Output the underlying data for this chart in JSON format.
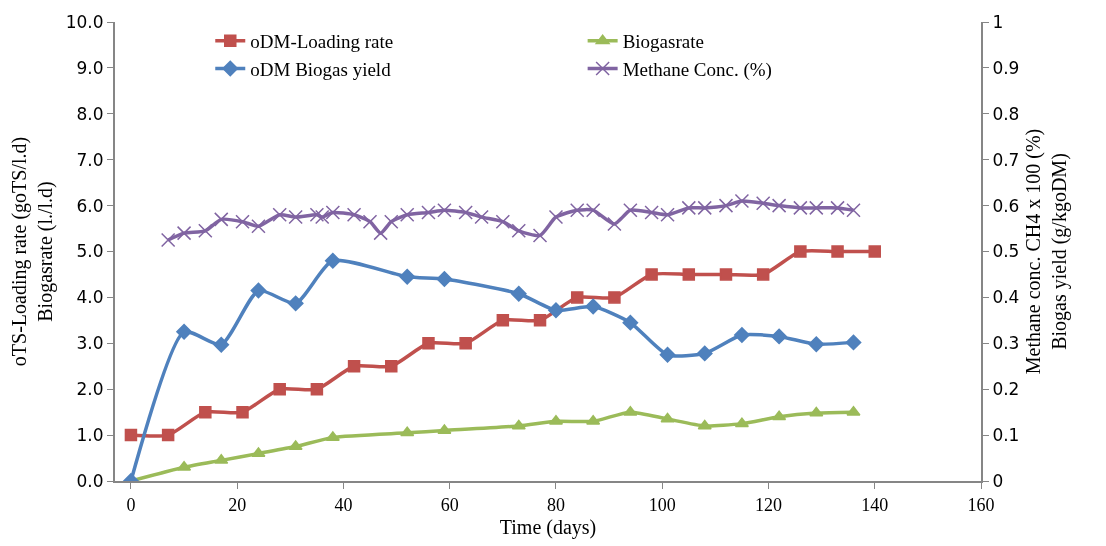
{
  "chart_data": {
    "type": "line",
    "xlabel": "Time (days)",
    "ylabel": "oTS-Loading rate (goTS/l.d)\nBiogasrate (l./l.d)",
    "y2label": "Methane conc. CH4 x 100 (%)\nBiogas yield (g/kgoDM)",
    "xlim": [
      -3,
      160
    ],
    "xticks": [
      0,
      20,
      40,
      60,
      80,
      100,
      120,
      140,
      160
    ],
    "ylim": [
      0,
      10
    ],
    "yticks": [
      {
        "value": 0,
        "label": "0.0"
      },
      {
        "value": 1,
        "label": "1.0"
      },
      {
        "value": 2,
        "label": "2.0"
      },
      {
        "value": 3,
        "label": "3.0"
      },
      {
        "value": 4,
        "label": "4.0"
      },
      {
        "value": 5,
        "label": "5.0"
      },
      {
        "value": 6,
        "label": "6.0"
      },
      {
        "value": 7,
        "label": "7.0"
      },
      {
        "value": 8,
        "label": "8.0"
      },
      {
        "value": 9,
        "label": "9.0"
      },
      {
        "value": 10,
        "label": "10.0"
      }
    ],
    "y2lim": [
      0,
      1
    ],
    "y2ticks": [
      0,
      0.1,
      0.2,
      0.3,
      0.4,
      0.5,
      0.6,
      0.7,
      0.8,
      0.9,
      1
    ],
    "legend": "top",
    "series": [
      {
        "name": "oDM-Loading rate",
        "color": "#c0504d",
        "marker": "square",
        "x": [
          0,
          7,
          14,
          21,
          28,
          35,
          42,
          49,
          56,
          63,
          70,
          77,
          84,
          91,
          98,
          105,
          112,
          119,
          126,
          133,
          140
        ],
        "values": [
          1,
          1,
          1.5,
          1.5,
          2,
          2,
          2.5,
          2.5,
          3,
          3,
          3.5,
          3.5,
          4,
          4,
          4.5,
          4.5,
          4.5,
          4.5,
          5,
          5,
          5
        ]
      },
      {
        "name": "Biogasrate",
        "color": "#9bbb59",
        "marker": "triangle",
        "x": [
          0,
          10,
          17,
          24,
          31,
          38,
          52,
          59,
          73,
          80,
          87,
          94,
          101,
          108,
          115,
          122,
          129,
          136
        ],
        "values": [
          0,
          0.3,
          0.45,
          0.6,
          0.75,
          0.95,
          1.05,
          1.1,
          1.2,
          1.3,
          1.3,
          1.5,
          1.35,
          1.2,
          1.25,
          1.4,
          1.48,
          1.5
        ]
      },
      {
        "name": "oDM Biogas yield",
        "color": "#4f81bd",
        "marker": "diamond",
        "axis": "y2",
        "x": [
          0,
          10,
          17,
          24,
          31,
          38,
          52,
          59,
          73,
          80,
          87,
          94,
          101,
          108,
          115,
          122,
          129,
          136
        ],
        "values": [
          0,
          0.325,
          0.297,
          0.415,
          0.387,
          0.48,
          0.445,
          0.44,
          0.408,
          0.372,
          0.38,
          0.345,
          0.275,
          0.278,
          0.318,
          0.315,
          0.298,
          0.302
        ]
      },
      {
        "name": "Methane Conc. (%)",
        "color": "#8064a2",
        "marker": "cross",
        "axis": "y2",
        "x": [
          7,
          10,
          14,
          17,
          21,
          24,
          28,
          31,
          35,
          36,
          38,
          42,
          45,
          47,
          49,
          52,
          56,
          59,
          63,
          66,
          70,
          73,
          77,
          80,
          84,
          87,
          91,
          94,
          98,
          101,
          105,
          108,
          112,
          115,
          119,
          122,
          126,
          129,
          133,
          136
        ],
        "values": [
          0.525,
          0.54,
          0.545,
          0.57,
          0.565,
          0.555,
          0.58,
          0.575,
          0.58,
          0.575,
          0.585,
          0.58,
          0.565,
          0.54,
          0.565,
          0.58,
          0.585,
          0.59,
          0.585,
          0.575,
          0.565,
          0.545,
          0.535,
          0.575,
          0.59,
          0.59,
          0.56,
          0.59,
          0.585,
          0.58,
          0.595,
          0.595,
          0.6,
          0.61,
          0.605,
          0.6,
          0.595,
          0.595,
          0.595,
          0.59
        ]
      }
    ]
  }
}
